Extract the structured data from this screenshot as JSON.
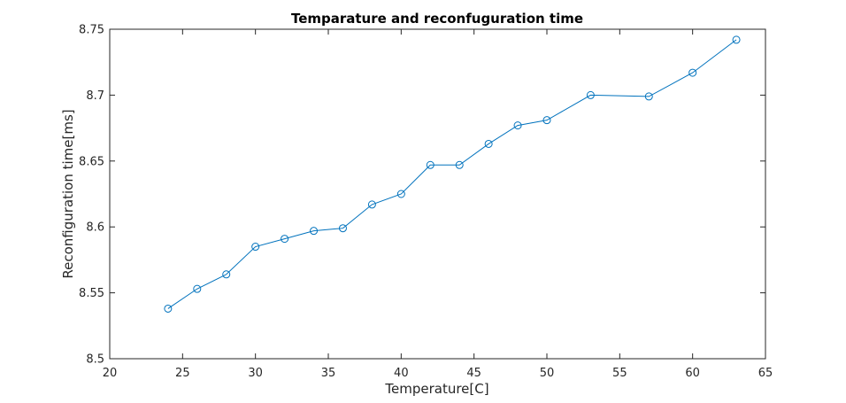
{
  "chart_data": {
    "type": "line",
    "title": "Temparature and reconfuguration time",
    "xlabel": "Temperature[C]",
    "ylabel": "Reconfiguration time[ms]",
    "xlim": [
      20,
      65
    ],
    "ylim": [
      8.5,
      8.75
    ],
    "xticks": [
      20,
      25,
      30,
      35,
      40,
      45,
      50,
      55,
      60,
      65
    ],
    "yticks": [
      8.5,
      8.55,
      8.6,
      8.65,
      8.7,
      8.75
    ],
    "xtick_labels": [
      "20",
      "25",
      "30",
      "35",
      "40",
      "45",
      "50",
      "55",
      "60",
      "65"
    ],
    "ytick_labels": [
      "8.5",
      "8.55",
      "8.6",
      "8.65",
      "8.7",
      "8.75"
    ],
    "grid": false,
    "series": [
      {
        "color": "#0072bd",
        "marker": "circle",
        "x": [
          24,
          26,
          28,
          30,
          32,
          34,
          36,
          38,
          40,
          42,
          44,
          46,
          48,
          50,
          53,
          57,
          60,
          63
        ],
        "y": [
          8.538,
          8.553,
          8.564,
          8.585,
          8.591,
          8.597,
          8.599,
          8.617,
          8.625,
          8.647,
          8.647,
          8.663,
          8.677,
          8.681,
          8.7,
          8.699,
          8.717,
          8.742
        ]
      }
    ]
  }
}
